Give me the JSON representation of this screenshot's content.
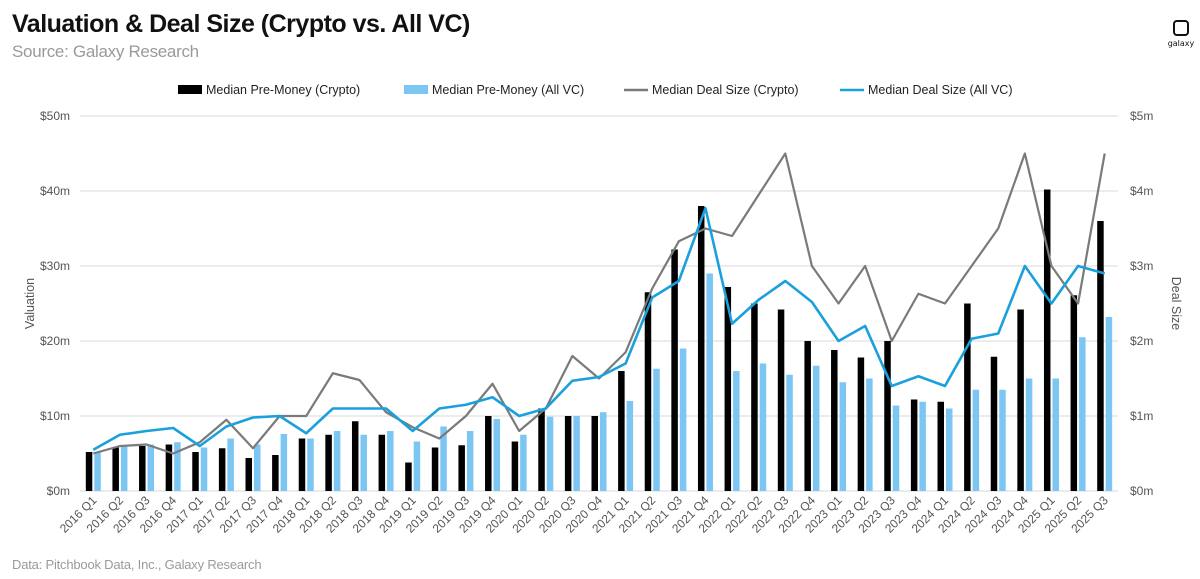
{
  "header": {
    "title": "Valuation & Deal Size (Crypto vs. All VC)",
    "subtitle": "Source: Galaxy Research"
  },
  "footer": {
    "note": "Data: Pitchbook Data, Inc., Galaxy Research"
  },
  "logo": {
    "text": "galaxy"
  },
  "chart_data": {
    "type": "bar",
    "title": "Valuation & Deal Size (Crypto vs. All VC)",
    "subtitle": "Source: Galaxy Research",
    "ylabel": "Valuation",
    "y2label": "Deal Size",
    "ylim": [
      0,
      50
    ],
    "y2lim": [
      0,
      5
    ],
    "yticks": [
      "$0m",
      "$10m",
      "$20m",
      "$30m",
      "$40m",
      "$50m"
    ],
    "y2ticks": [
      "$0m",
      "$1m",
      "$2m",
      "$3m",
      "$4m",
      "$5m"
    ],
    "grid": true,
    "legend_position": "top",
    "categories": [
      "2016 Q1",
      "2016 Q2",
      "2016 Q3",
      "2016 Q4",
      "2017 Q1",
      "2017 Q2",
      "2017 Q3",
      "2017 Q4",
      "2018 Q1",
      "2018 Q2",
      "2018 Q3",
      "2018 Q4",
      "2019 Q1",
      "2019 Q2",
      "2019 Q3",
      "2019 Q4",
      "2020 Q1",
      "2020 Q2",
      "2020 Q3",
      "2020 Q4",
      "2021 Q1",
      "2021 Q2",
      "2021 Q3",
      "2021 Q4",
      "2022 Q1",
      "2022 Q2",
      "2022 Q3",
      "2022 Q4",
      "2023 Q1",
      "2023 Q2",
      "2023 Q3",
      "2023 Q4",
      "2024 Q1",
      "2024 Q2",
      "2024 Q3",
      "2024 Q4",
      "2025 Q1",
      "2025 Q2",
      "2025 Q3"
    ],
    "series": [
      {
        "name": "Median Pre-Money (Crypto)",
        "kind": "bar",
        "axis": "left",
        "color": "#000000",
        "values": [
          5.2,
          5.8,
          6.0,
          6.2,
          5.2,
          5.7,
          4.4,
          4.8,
          7.0,
          7.5,
          9.3,
          7.5,
          3.8,
          5.8,
          6.1,
          10.0,
          6.6,
          11.0,
          10.0,
          10.0,
          16.0,
          26.5,
          32.2,
          38.0,
          27.2,
          25.0,
          24.2,
          20.0,
          18.8,
          17.8,
          20.0,
          12.2,
          11.9,
          25.0,
          17.9,
          24.2,
          40.2,
          26.1,
          36.0
        ]
      },
      {
        "name": "Median Pre-Money (All VC)",
        "kind": "bar",
        "axis": "left",
        "color": "#7cc6f4",
        "values": [
          5.2,
          6.0,
          6.2,
          6.5,
          5.8,
          7.0,
          6.2,
          7.6,
          7.0,
          8.0,
          7.5,
          8.0,
          6.6,
          8.6,
          8.0,
          9.6,
          7.5,
          9.9,
          10.0,
          10.5,
          12.0,
          16.3,
          19.0,
          29.0,
          16.0,
          17.0,
          15.5,
          16.7,
          14.5,
          15.0,
          11.4,
          11.9,
          11.0,
          13.5,
          13.5,
          15.0,
          15.0,
          20.5,
          23.2
        ]
      },
      {
        "name": "Median Deal Size (Crypto)",
        "kind": "line",
        "axis": "right",
        "color": "#7a7a7a",
        "values": [
          0.5,
          0.6,
          0.62,
          0.5,
          0.65,
          0.95,
          0.57,
          1.0,
          1.0,
          1.57,
          1.48,
          1.05,
          0.85,
          0.7,
          1.0,
          1.43,
          0.8,
          1.1,
          1.8,
          1.5,
          1.85,
          2.7,
          3.33,
          3.5,
          3.4,
          3.95,
          4.5,
          3.0,
          2.5,
          3.0,
          2.0,
          2.63,
          2.5,
          3.0,
          3.5,
          4.5,
          3.0,
          2.5,
          4.5
        ]
      },
      {
        "name": "Median Deal Size (All VC)",
        "kind": "line",
        "axis": "right",
        "color": "#1aa0dc",
        "values": [
          0.55,
          0.75,
          0.8,
          0.84,
          0.6,
          0.86,
          0.98,
          1.0,
          0.77,
          1.1,
          1.1,
          1.1,
          0.8,
          1.1,
          1.15,
          1.25,
          1.0,
          1.1,
          1.47,
          1.52,
          1.7,
          2.58,
          2.8,
          3.77,
          2.23,
          2.55,
          2.8,
          2.52,
          2.0,
          2.2,
          1.4,
          1.53,
          1.4,
          2.03,
          2.1,
          3.0,
          2.5,
          3.0,
          2.9
        ]
      }
    ]
  }
}
